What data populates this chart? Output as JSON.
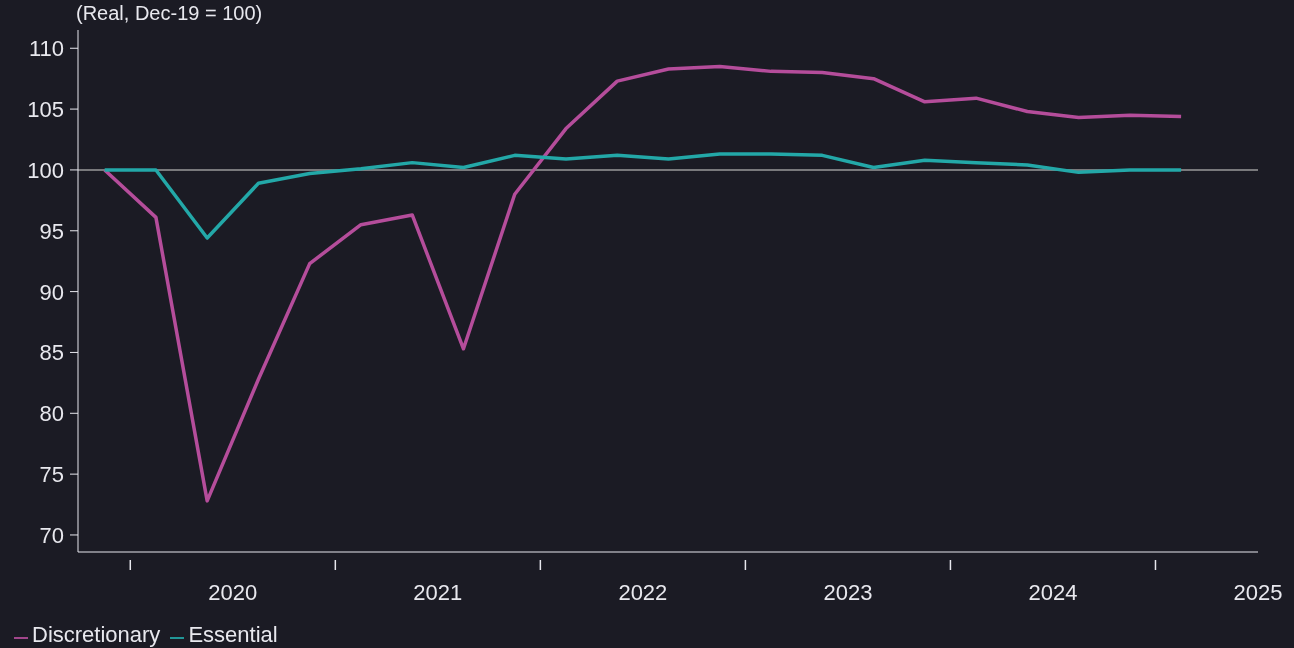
{
  "chart_data": {
    "type": "line",
    "ylabel": "(Real, Dec-19 = 100)",
    "x": [
      2019.375,
      2019.625,
      2019.875,
      2020.125,
      2020.375,
      2020.625,
      2020.875,
      2021.125,
      2021.375,
      2021.625,
      2021.875,
      2022.125,
      2022.375,
      2022.625,
      2022.875,
      2023.125,
      2023.375,
      2023.625,
      2023.875,
      2024.125,
      2024.375,
      2024.625
    ],
    "series": [
      {
        "name": "Discretionary",
        "color": "#b54d9b",
        "values": [
          100,
          96.1,
          72.8,
          82.8,
          92.3,
          95.5,
          96.3,
          85.3,
          98.0,
          103.4,
          107.3,
          108.3,
          108.5,
          108.1,
          108.0,
          107.5,
          105.6,
          105.9,
          104.8,
          104.3,
          104.5,
          104.4
        ]
      },
      {
        "name": "Essential",
        "color": "#23a8a8",
        "values": [
          100,
          100,
          94.4,
          98.9,
          99.7,
          100.1,
          100.6,
          100.2,
          101.2,
          100.9,
          101.2,
          100.9,
          101.3,
          101.3,
          101.2,
          100.2,
          100.8,
          100.6,
          100.4,
          99.8,
          100.0,
          100.0
        ]
      }
    ],
    "xlim": [
      2019.245,
      2025.0
    ],
    "xticks": [
      {
        "value": 2019.5,
        "label": null
      },
      2020,
      {
        "value": 2020.5,
        "label": null
      },
      2021,
      {
        "value": 2021.5,
        "label": null
      },
      2022,
      {
        "value": 2022.5,
        "label": null
      },
      2023,
      {
        "value": 2023.5,
        "label": null
      },
      2024,
      {
        "value": 2024.5,
        "label": null
      },
      2025
    ],
    "ylim": [
      68.6,
      111.5
    ],
    "yticks": [
      70,
      75,
      80,
      85,
      90,
      95,
      100,
      105,
      110
    ],
    "ref_lines": [
      {
        "axis": "y",
        "value": 100,
        "color": "#9a9a9a"
      }
    ],
    "grid": false,
    "legend": "bottom left",
    "marker": "none",
    "line_style": "solid"
  }
}
